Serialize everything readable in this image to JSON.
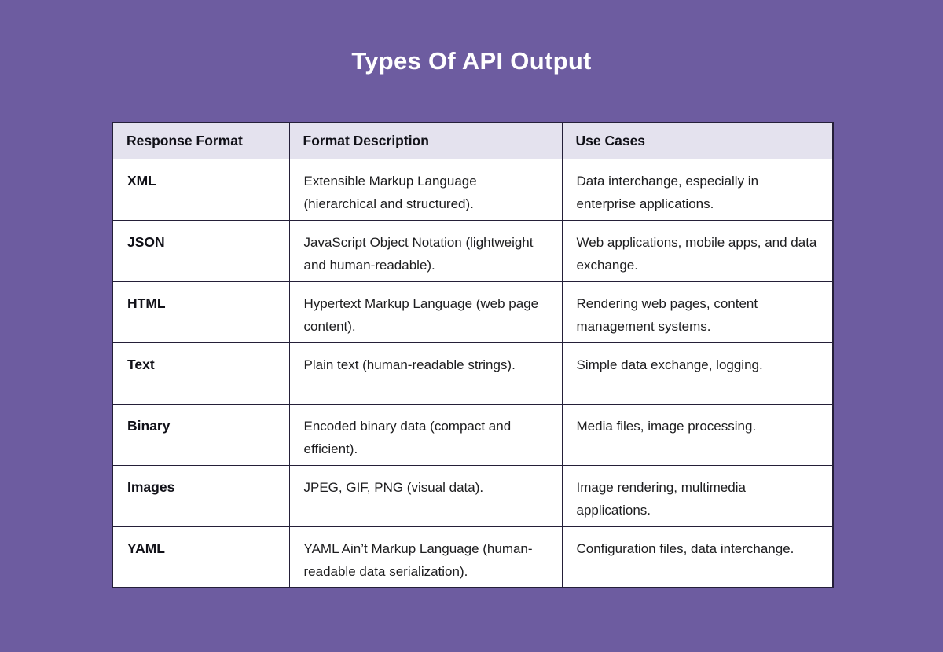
{
  "title": "Types Of API Output",
  "colors": {
    "page_background": "#6d5ca0",
    "header_background": "#e4e2ee",
    "cell_background": "#ffffff",
    "border": "#241f38",
    "title_text": "#ffffff",
    "body_text": "#1d1d1f"
  },
  "chart_data": {
    "type": "table",
    "title": "Types Of API Output",
    "columns": [
      "Response Format",
      "Format Description",
      "Use Cases"
    ],
    "rows": [
      [
        "XML",
        "Extensible Markup Language (hierarchical and structured).",
        "Data interchange, especially in enterprise applications."
      ],
      [
        "JSON",
        "JavaScript Object Notation (lightweight and human-readable).",
        "Web applications, mobile apps, and data exchange."
      ],
      [
        "HTML",
        "Hypertext Markup Language (web page content).",
        "Rendering web pages, content management systems."
      ],
      [
        "Text",
        "Plain text (human-readable strings).",
        "Simple data exchange, logging."
      ],
      [
        "Binary",
        "Encoded binary data (compact and efficient).",
        "Media files, image processing."
      ],
      [
        "Images",
        "JPEG, GIF, PNG (visual data).",
        "Image rendering, multimedia applications."
      ],
      [
        "YAML",
        "YAML Ain’t Markup Language (human-readable data serialization).",
        "Configuration files, data interchange."
      ]
    ]
  }
}
